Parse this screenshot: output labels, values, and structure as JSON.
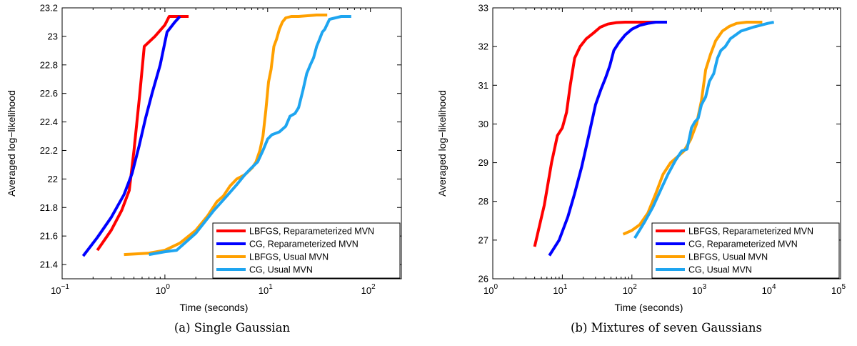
{
  "chart_data": [
    {
      "type": "line",
      "caption": "(a) Single Gaussian",
      "xlabel": "Time (seconds)",
      "ylabel": "Averaged log−likelihood",
      "xscale": "log",
      "xlim": [
        0.1,
        200
      ],
      "ylim": [
        21.3,
        23.2
      ],
      "x_ticks": [
        {
          "value": 0.1,
          "base": "10",
          "exp": "−1"
        },
        {
          "value": 1,
          "base": "10",
          "exp": "0"
        },
        {
          "value": 10,
          "base": "10",
          "exp": "1"
        },
        {
          "value": 100,
          "base": "10",
          "exp": "2"
        }
      ],
      "y_ticks": [
        {
          "value": 21.4,
          "label": "21.4"
        },
        {
          "value": 21.6,
          "label": "21.6"
        },
        {
          "value": 21.8,
          "label": "21.8"
        },
        {
          "value": 22.0,
          "label": "22"
        },
        {
          "value": 22.2,
          "label": "22.2"
        },
        {
          "value": 22.4,
          "label": "22.4"
        },
        {
          "value": 22.6,
          "label": "22.6"
        },
        {
          "value": 22.8,
          "label": "22.8"
        },
        {
          "value": 23.0,
          "label": "23"
        },
        {
          "value": 23.2,
          "label": "23.2"
        }
      ],
      "legend_position": "bottom-right",
      "series": [
        {
          "name": "LBFGS, Reparameterized MVN",
          "color": "#ff0000",
          "x": [
            0.22,
            0.3,
            0.38,
            0.45,
            0.5,
            0.57,
            0.63,
            0.8,
            1.0,
            1.1,
            1.3,
            1.7
          ],
          "y": [
            21.5,
            21.64,
            21.78,
            21.92,
            22.2,
            22.6,
            22.93,
            23.0,
            23.08,
            23.14,
            23.14,
            23.14
          ]
        },
        {
          "name": "CG, Reparameterized MVN",
          "color": "#0000ff",
          "x": [
            0.16,
            0.22,
            0.3,
            0.4,
            0.48,
            0.56,
            0.65,
            0.75,
            0.9,
            1.05,
            1.25,
            1.4
          ],
          "y": [
            21.46,
            21.59,
            21.73,
            21.89,
            22.04,
            22.23,
            22.43,
            22.6,
            22.8,
            23.03,
            23.1,
            23.14
          ]
        },
        {
          "name": "LBFGS, Usual MVN",
          "color": "#ffa000",
          "x": [
            0.4,
            0.7,
            1.0,
            1.4,
            2.0,
            2.6,
            3.2,
            3.7,
            4.3,
            5.0,
            6.0,
            7.1,
            7.7,
            8.4,
            9.0,
            9.6,
            10.2,
            10.8,
            11.5,
            12.2,
            13.0,
            13.9,
            15.0,
            17.0,
            20.0,
            30.0,
            38.0
          ],
          "y": [
            21.47,
            21.48,
            21.5,
            21.55,
            21.64,
            21.74,
            21.84,
            21.88,
            21.95,
            22.0,
            22.03,
            22.08,
            22.12,
            22.2,
            22.3,
            22.48,
            22.68,
            22.77,
            22.93,
            22.98,
            23.05,
            23.1,
            23.13,
            23.14,
            23.14,
            23.15,
            23.15
          ]
        },
        {
          "name": "CG, Usual MVN",
          "color": "#1ea5f0",
          "x": [
            0.7,
            1.0,
            1.3,
            2.0,
            3.0,
            4.0,
            5.0,
            6.0,
            7.0,
            8.0,
            9.0,
            10.0,
            11.0,
            13.0,
            15.0,
            16.5,
            18.5,
            20.0,
            22.0,
            24.0,
            26.0,
            28.0,
            30.0,
            32.0,
            34.0,
            36.0,
            40.0,
            52.0,
            65.0
          ],
          "y": [
            21.47,
            21.49,
            21.5,
            21.62,
            21.78,
            21.88,
            21.96,
            22.03,
            22.08,
            22.12,
            22.2,
            22.28,
            22.31,
            22.33,
            22.37,
            22.44,
            22.46,
            22.5,
            22.62,
            22.74,
            22.8,
            22.85,
            22.93,
            22.98,
            23.03,
            23.05,
            23.12,
            23.14,
            23.14
          ]
        }
      ]
    },
    {
      "type": "line",
      "caption": "(b) Mixtures of seven Gaussians",
      "xlabel": "Time (seconds)",
      "ylabel": "Averaged log−likelihood",
      "xscale": "log",
      "xlim": [
        1,
        100000
      ],
      "ylim": [
        26,
        33
      ],
      "x_ticks": [
        {
          "value": 1,
          "base": "10",
          "exp": "0"
        },
        {
          "value": 10,
          "base": "10",
          "exp": "1"
        },
        {
          "value": 100,
          "base": "10",
          "exp": "2"
        },
        {
          "value": 1000,
          "base": "10",
          "exp": "3"
        },
        {
          "value": 10000,
          "base": "10",
          "exp": "4"
        },
        {
          "value": 100000,
          "base": "10",
          "exp": "5"
        }
      ],
      "y_ticks": [
        {
          "value": 26,
          "label": "26"
        },
        {
          "value": 27,
          "label": "27"
        },
        {
          "value": 28,
          "label": "28"
        },
        {
          "value": 29,
          "label": "29"
        },
        {
          "value": 30,
          "label": "30"
        },
        {
          "value": 31,
          "label": "31"
        },
        {
          "value": 32,
          "label": "32"
        },
        {
          "value": 33,
          "label": "33"
        }
      ],
      "legend_position": "bottom-right",
      "series": [
        {
          "name": "LBFGS, Reparameterized MVN",
          "color": "#ff0000",
          "x": [
            4.0,
            5.5,
            7.0,
            8.5,
            10.0,
            11.5,
            13.0,
            15.0,
            18.0,
            22.0,
            28.0,
            35.0,
            45.0,
            60.0,
            80.0,
            110.0,
            150.0,
            220.0
          ],
          "y": [
            26.83,
            27.9,
            29.0,
            29.7,
            29.9,
            30.3,
            31.0,
            31.7,
            32.0,
            32.2,
            32.35,
            32.5,
            32.58,
            32.62,
            32.63,
            32.63,
            32.63,
            32.63
          ]
        },
        {
          "name": "CG, Reparameterized MVN",
          "color": "#0000ff",
          "x": [
            6.5,
            9.0,
            12.0,
            15.0,
            19.0,
            24.0,
            30.0,
            36.0,
            42.0,
            48.0,
            55.0,
            65.0,
            80.0,
            100.0,
            130.0,
            170.0,
            220.0,
            320.0
          ],
          "y": [
            26.6,
            27.0,
            27.6,
            28.2,
            28.9,
            29.7,
            30.5,
            30.9,
            31.2,
            31.5,
            31.9,
            32.1,
            32.3,
            32.45,
            32.55,
            32.6,
            32.63,
            32.63
          ]
        },
        {
          "name": "LBFGS, Usual MVN",
          "color": "#ffa000",
          "x": [
            75.0,
            100.0,
            130.0,
            170.0,
            220.0,
            280.0,
            360.0,
            450.0,
            560.0,
            700.0,
            850.0,
            1000.0,
            1150.0,
            1350.0,
            1600.0,
            2000.0,
            2500.0,
            3200.0,
            4500.0,
            6000.0,
            7500.0
          ],
          "y": [
            27.15,
            27.25,
            27.4,
            27.7,
            28.2,
            28.7,
            29.0,
            29.15,
            29.3,
            29.6,
            30.0,
            30.6,
            31.4,
            31.8,
            32.15,
            32.4,
            32.52,
            32.6,
            32.63,
            32.63,
            32.63
          ]
        },
        {
          "name": "CG, Usual MVN",
          "color": "#1ea5f0",
          "x": [
            110.0,
            150.0,
            200.0,
            260.0,
            330.0,
            420.0,
            520.0,
            620.0,
            720.0,
            800.0,
            900.0,
            1000.0,
            1150.0,
            1300.0,
            1500.0,
            1700.0,
            1900.0,
            2200.0,
            2600.0,
            3100.0,
            3700.0,
            4500.0,
            5500.0,
            7000.0,
            9000.0,
            11000.0
          ],
          "y": [
            27.05,
            27.45,
            27.85,
            28.3,
            28.7,
            29.05,
            29.3,
            29.35,
            29.9,
            30.05,
            30.15,
            30.5,
            30.7,
            31.1,
            31.3,
            31.7,
            31.9,
            32.0,
            32.2,
            32.3,
            32.4,
            32.45,
            32.5,
            32.55,
            32.6,
            32.63
          ]
        }
      ]
    }
  ]
}
